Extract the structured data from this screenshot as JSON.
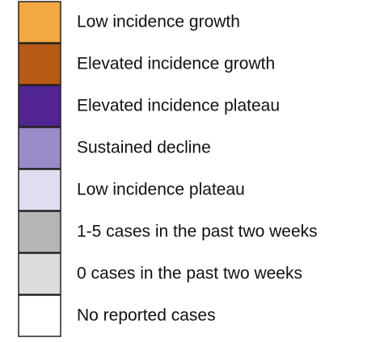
{
  "legend": {
    "items": [
      {
        "label": "Low incidence growth",
        "color": "#f3a842"
      },
      {
        "label": "Elevated incidence growth",
        "color": "#b65a16"
      },
      {
        "label": "Elevated incidence plateau",
        "color": "#512591"
      },
      {
        "label": "Sustained decline",
        "color": "#9a8bc9"
      },
      {
        "label": "Low incidence plateau",
        "color": "#dedef0"
      },
      {
        "label": "1-5 cases in the past two weeks",
        "color": "#b5b5b5"
      },
      {
        "label": "0 cases in the past two weeks",
        "color": "#dcdcdc"
      },
      {
        "label": "No reported cases",
        "color": "#ffffff"
      }
    ]
  }
}
